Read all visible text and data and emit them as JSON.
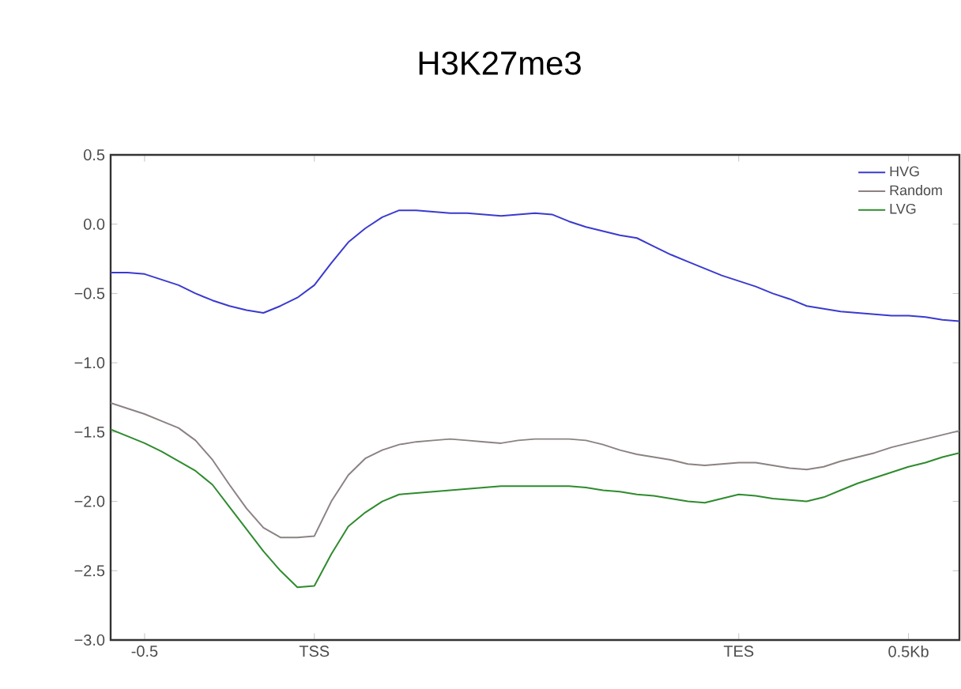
{
  "chart_data": {
    "type": "line",
    "title": "H3K27me3",
    "ylim": [
      -3.0,
      0.5
    ],
    "categories": [
      null,
      null,
      "-0.5",
      null,
      null,
      null,
      null,
      null,
      null,
      null,
      null,
      null,
      "TSS",
      null,
      null,
      null,
      null,
      null,
      null,
      null,
      null,
      null,
      null,
      null,
      null,
      null,
      null,
      null,
      null,
      null,
      null,
      null,
      null,
      null,
      null,
      null,
      null,
      "TES",
      null,
      null,
      null,
      null,
      null,
      null,
      null,
      null,
      null,
      "0.5Kb",
      null,
      null,
      null
    ],
    "yticks": [
      {
        "value": -3.0,
        "label": "−3.0"
      },
      {
        "value": -2.5,
        "label": "−2.5"
      },
      {
        "value": -2.0,
        "label": "−2.0"
      },
      {
        "value": -1.5,
        "label": "−1.5"
      },
      {
        "value": -1.0,
        "label": "−1.0"
      },
      {
        "value": -0.5,
        "label": "−0.5"
      },
      {
        "value": 0.0,
        "label": "0.0"
      },
      {
        "value": 0.5,
        "label": "0.5"
      }
    ],
    "legend": "top right",
    "grid": false,
    "marker": "none",
    "line_style": "solid",
    "series": [
      {
        "name": "HVG",
        "color": "#3a3ad0",
        "values": [
          -0.35,
          -0.35,
          -0.36,
          -0.4,
          -0.44,
          -0.5,
          -0.55,
          -0.59,
          -0.62,
          -0.64,
          -0.59,
          -0.53,
          -0.44,
          -0.28,
          -0.13,
          -0.03,
          0.05,
          0.1,
          0.1,
          0.09,
          0.08,
          0.08,
          0.07,
          0.06,
          0.07,
          0.08,
          0.07,
          0.02,
          -0.02,
          -0.05,
          -0.08,
          -0.1,
          -0.16,
          -0.22,
          -0.27,
          -0.32,
          -0.37,
          -0.41,
          -0.45,
          -0.5,
          -0.54,
          -0.59,
          -0.61,
          -0.63,
          -0.64,
          -0.65,
          -0.66,
          -0.66,
          -0.67,
          -0.69,
          -0.7
        ]
      },
      {
        "name": "Random",
        "color": "#8c8282",
        "values": [
          -1.29,
          -1.33,
          -1.37,
          -1.42,
          -1.47,
          -1.56,
          -1.7,
          -1.88,
          -2.05,
          -2.19,
          -2.26,
          -2.26,
          -2.25,
          -2.0,
          -1.81,
          -1.69,
          -1.63,
          -1.59,
          -1.57,
          -1.56,
          -1.55,
          -1.56,
          -1.57,
          -1.58,
          -1.56,
          -1.55,
          -1.55,
          -1.55,
          -1.56,
          -1.59,
          -1.63,
          -1.66,
          -1.68,
          -1.7,
          -1.73,
          -1.74,
          -1.73,
          -1.72,
          -1.72,
          -1.74,
          -1.76,
          -1.77,
          -1.75,
          -1.71,
          -1.68,
          -1.65,
          -1.61,
          -1.58,
          -1.55,
          -1.52,
          -1.49
        ]
      },
      {
        "name": "LVG",
        "color": "#2e8b2e",
        "values": [
          -1.48,
          -1.53,
          -1.58,
          -1.64,
          -1.71,
          -1.78,
          -1.88,
          -2.04,
          -2.2,
          -2.36,
          -2.5,
          -2.62,
          -2.61,
          -2.38,
          -2.18,
          -2.08,
          -2.0,
          -1.95,
          -1.94,
          -1.93,
          -1.92,
          -1.91,
          -1.9,
          -1.89,
          -1.89,
          -1.89,
          -1.89,
          -1.89,
          -1.9,
          -1.92,
          -1.93,
          -1.95,
          -1.96,
          -1.98,
          -2.0,
          -2.01,
          -1.98,
          -1.95,
          -1.96,
          -1.98,
          -1.99,
          -2.0,
          -1.97,
          -1.92,
          -1.87,
          -1.83,
          -1.79,
          -1.75,
          -1.72,
          -1.68,
          -1.65
        ]
      }
    ]
  }
}
